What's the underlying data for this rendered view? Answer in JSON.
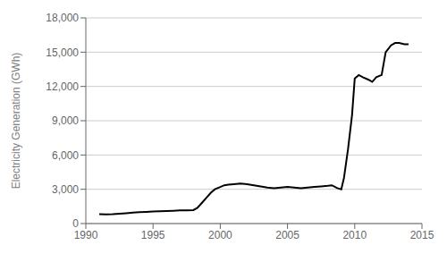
{
  "chart_data": {
    "type": "line",
    "ylabel": "Electricity Generation (GWh)",
    "x": [
      1991,
      1991.5,
      1992,
      1992.5,
      1993,
      1993.5,
      1994,
      1994.5,
      1995,
      1995.5,
      1996,
      1996.5,
      1997,
      1997.5,
      1998,
      1998.3,
      1998.7,
      1999,
      1999.3,
      1999.6,
      2000,
      2000.3,
      2000.6,
      2001,
      2001.5,
      2002,
      2002.5,
      2003,
      2003.5,
      2004,
      2004.5,
      2005,
      2005.5,
      2006,
      2006.5,
      2007,
      2007.5,
      2008,
      2008.3,
      2008.7,
      2009,
      2009.2,
      2009.5,
      2009.8,
      2010,
      2010.3,
      2010.6,
      2011,
      2011.3,
      2011.6,
      2012,
      2012.3,
      2012.7,
      2013,
      2013.3,
      2013.7,
      2014
    ],
    "values": [
      820,
      810,
      820,
      860,
      900,
      950,
      1000,
      1020,
      1050,
      1080,
      1100,
      1120,
      1150,
      1150,
      1180,
      1380,
      1900,
      2300,
      2700,
      3000,
      3200,
      3350,
      3400,
      3450,
      3500,
      3450,
      3350,
      3250,
      3150,
      3100,
      3150,
      3200,
      3150,
      3100,
      3150,
      3200,
      3250,
      3300,
      3350,
      3100,
      3000,
      4000,
      6500,
      9500,
      12700,
      13000,
      12800,
      12600,
      12400,
      12800,
      13000,
      15000,
      15600,
      15800,
      15800,
      15700,
      15700
    ],
    "color": "#000000",
    "xlim": [
      1990,
      2015
    ],
    "xticks": [
      1990,
      1995,
      2000,
      2005,
      2010,
      2015
    ],
    "ylim": [
      0,
      18000
    ],
    "yticks": [
      0,
      {
        "value": 3000,
        "label": "3,000"
      },
      {
        "value": 6000,
        "label": "6,000"
      },
      {
        "value": 9000,
        "label": "9,000"
      },
      {
        "value": 12000,
        "label": "12,000"
      },
      {
        "value": 15000,
        "label": "15,000"
      },
      {
        "value": 18000,
        "label": "18,000"
      }
    ],
    "grid": "y"
  }
}
